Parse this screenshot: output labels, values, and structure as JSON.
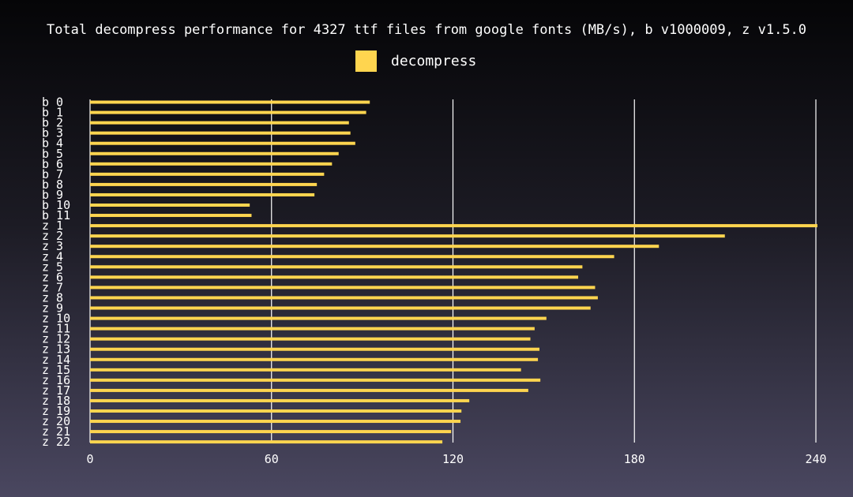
{
  "chart_data": {
    "type": "bar",
    "orientation": "horizontal",
    "title": "Total decompress performance for 4327 ttf files from google fonts (MB/s), b v1000009, z v1.5.0",
    "xlabel": "",
    "ylabel": "",
    "xlim": [
      0,
      240
    ],
    "xticks": [
      0,
      60,
      120,
      180,
      240
    ],
    "grid": "vertical",
    "legend_position": "top-center",
    "categories": [
      "b  0",
      "b  1",
      "b  2",
      "b  3",
      "b  4",
      "b  5",
      "b  6",
      "b  7",
      "b  8",
      "b  9",
      "b 10",
      "b 11",
      "z  1",
      "z  2",
      "z  3",
      "z  4",
      "z  5",
      "z  6",
      "z  7",
      "z  8",
      "z  9",
      "z 10",
      "z 11",
      "z 12",
      "z 13",
      "z 14",
      "z 15",
      "z 16",
      "z 17",
      "z 18",
      "z 19",
      "z 20",
      "z 21",
      "z 22"
    ],
    "series": [
      {
        "name": "decompress",
        "color": "#ffd54f",
        "values": [
          92.5,
          91.3,
          85.6,
          86.1,
          87.7,
          82.2,
          80.0,
          77.4,
          75.0,
          74.2,
          52.8,
          53.4,
          240.5,
          209.9,
          188.1,
          173.3,
          162.8,
          161.4,
          167.0,
          167.9,
          165.5,
          150.9,
          147.0,
          145.6,
          148.6,
          148.1,
          142.5,
          148.9,
          144.9,
          125.4,
          122.8,
          122.5,
          119.4,
          116.5
        ]
      }
    ]
  },
  "colors": {
    "bar": "#ffd54f",
    "grid": "#ffffff",
    "text": "#ffffff"
  }
}
